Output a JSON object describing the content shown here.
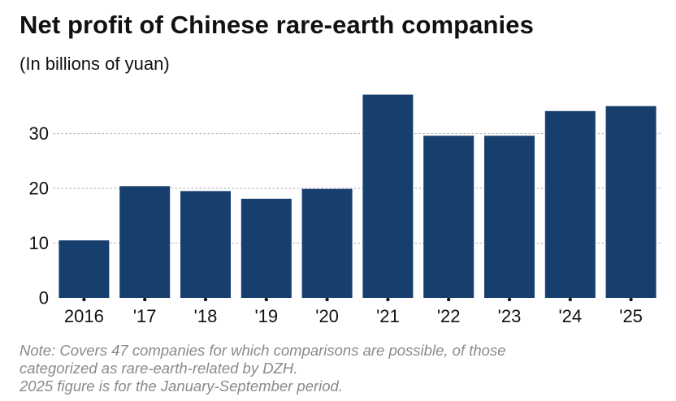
{
  "chart_data": {
    "type": "bar",
    "title": "Net profit of Chinese rare-earth companies",
    "subtitle": "(In billions of yuan)",
    "categories": [
      "2016",
      "'17",
      "'18",
      "'19",
      "'20",
      "'21",
      "'22",
      "'23",
      "'24",
      "'25"
    ],
    "values": [
      10.5,
      20.4,
      19.5,
      18.1,
      19.9,
      37.1,
      29.6,
      29.6,
      34.1,
      35.0
    ],
    "xlabel": "",
    "ylabel": "",
    "ylim": [
      0,
      40
    ],
    "yticks": [
      0,
      10,
      20,
      30
    ],
    "grid": "horizontal-dotted",
    "bar_color": "#173f6d",
    "grid_color": "#bdbdbd",
    "note": [
      "Note: Covers 47 companies for which comparisons are possible, of those",
      "categorized as rare-earth-related by DZH.",
      "2025 figure is for the January-September period."
    ]
  }
}
